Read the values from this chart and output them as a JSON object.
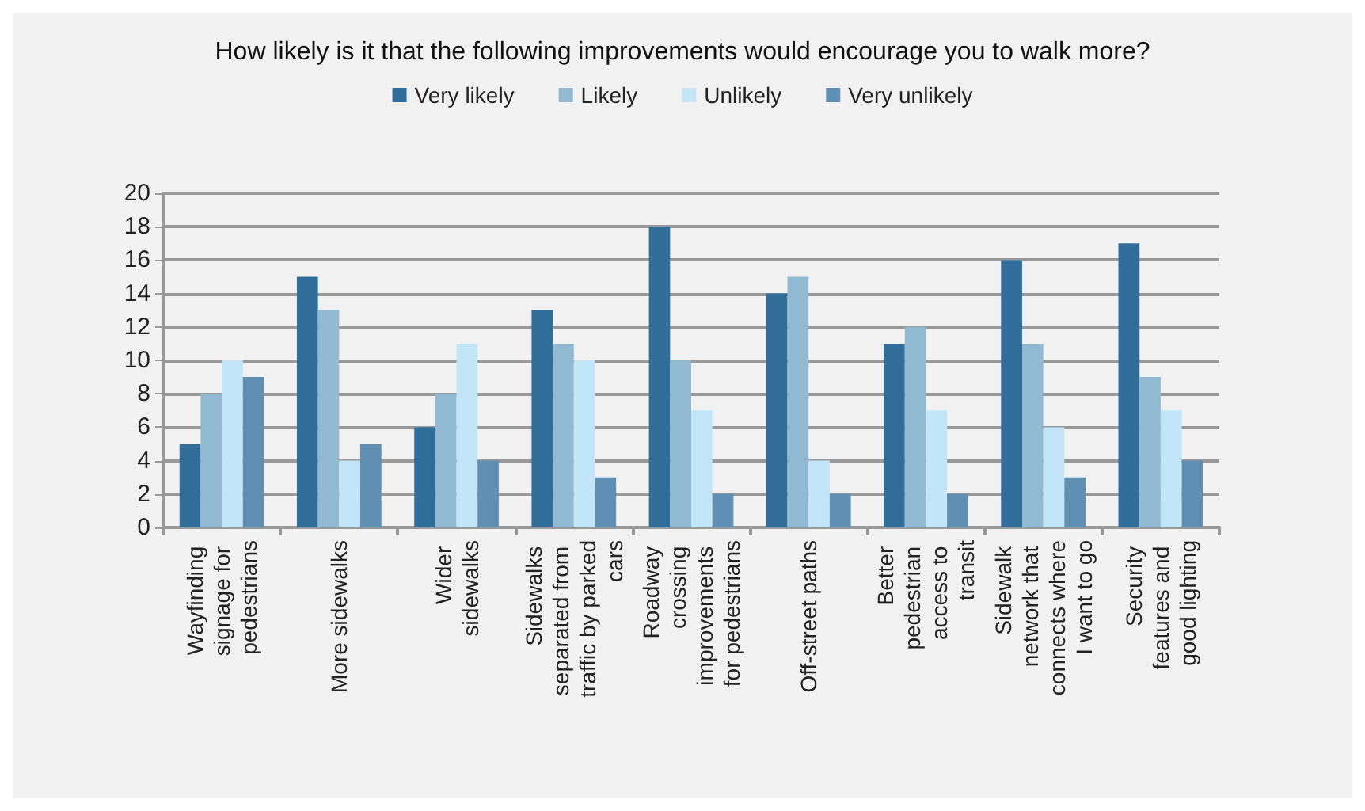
{
  "chart_data": {
    "type": "bar",
    "title": "How likely is it that the following improvements would encourage you to walk more?",
    "categories": [
      "Wayfinding signage for pedestrians",
      "More sidewalks",
      "Wider sidewalks",
      "Sidewalks separated from traffic by parked cars",
      "Roadway crossing improvements for pedestrians",
      "Off-street paths",
      "Better pedestrian access to transit",
      "Sidewalk network that connects where I want to go",
      "Security features and good lighting"
    ],
    "series": [
      {
        "name": "Very likely",
        "color": "#306d98",
        "values": [
          5,
          15,
          6,
          13,
          18,
          14,
          11,
          16,
          17
        ]
      },
      {
        "name": "Likely",
        "color": "#91b9d1",
        "values": [
          8,
          13,
          8,
          11,
          10,
          15,
          12,
          11,
          9
        ]
      },
      {
        "name": "Unlikely",
        "color": "#c2e6f8",
        "values": [
          10,
          4,
          11,
          10,
          7,
          4,
          7,
          6,
          7
        ]
      },
      {
        "name": "Very unlikely",
        "color": "#5f8fb3",
        "values": [
          9,
          5,
          4,
          3,
          2,
          2,
          2,
          3,
          4
        ]
      }
    ],
    "ylim": [
      0,
      20
    ],
    "yticks": [
      0,
      2,
      4,
      6,
      8,
      10,
      12,
      14,
      16,
      18,
      20
    ],
    "grid": "y",
    "legend": "top"
  }
}
